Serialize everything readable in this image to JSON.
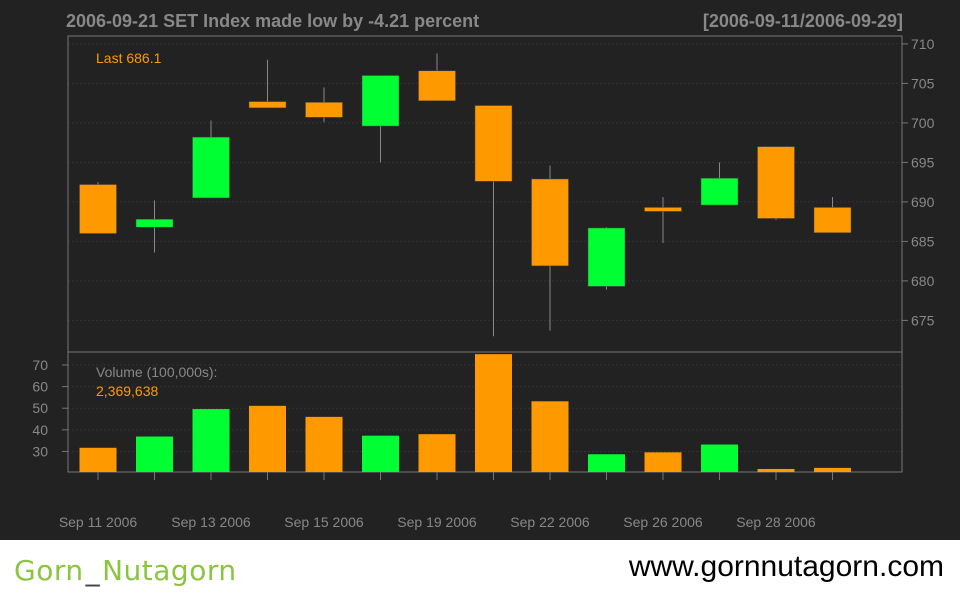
{
  "header": {
    "title": "2006-09-21 SET Index made low by -4.21 percent",
    "range": "[2006-09-11/2006-09-29]"
  },
  "annotations": {
    "last_label": "Last 686.1",
    "volume_label": "Volume (100,000s):",
    "volume_value": "2,369,638"
  },
  "footer": {
    "brand_part1": "Gorn",
    "brand_sep": "_",
    "brand_part2": "Nutagorn",
    "website": "www.gornnutagorn.com"
  },
  "colors": {
    "background": "#222222",
    "up": "#00ff33",
    "down": "#ff9900",
    "text": "#888888",
    "annotation": "#ff9900",
    "brand": "#8bc53f"
  },
  "chart_data": {
    "type": "candlestick",
    "x_tick_labels": [
      "Sep 11 2006",
      "Sep 13 2006",
      "Sep 15 2006",
      "Sep 19 2006",
      "Sep 22 2006",
      "Sep 26 2006",
      "Sep 28 2006"
    ],
    "price_yticks": [
      675,
      680,
      685,
      690,
      695,
      700,
      705,
      710
    ],
    "price_ylim": [
      671,
      711
    ],
    "volume_yticks": [
      30,
      40,
      50,
      60,
      70
    ],
    "volume_ylim": [
      20.5,
      76
    ],
    "candles": [
      {
        "date": "2006-09-11",
        "open": 692.2,
        "high": 692.5,
        "low": 686.0,
        "close": 686.0,
        "volume": 31.7
      },
      {
        "date": "2006-09-12",
        "open": 686.8,
        "high": 690.2,
        "low": 683.6,
        "close": 687.8,
        "volume": 36.9
      },
      {
        "date": "2006-09-13",
        "open": 690.5,
        "high": 700.3,
        "low": 690.5,
        "close": 698.2,
        "volume": 49.6
      },
      {
        "date": "2006-09-14",
        "open": 702.7,
        "high": 708.0,
        "low": 701.9,
        "close": 701.9,
        "volume": 51.1
      },
      {
        "date": "2006-09-15",
        "open": 702.6,
        "high": 704.5,
        "low": 700.1,
        "close": 700.7,
        "volume": 46.0
      },
      {
        "date": "2006-09-18",
        "open": 699.6,
        "high": 706.0,
        "low": 695.0,
        "close": 706.0,
        "volume": 37.3
      },
      {
        "date": "2006-09-19",
        "open": 706.6,
        "high": 708.8,
        "low": 702.8,
        "close": 702.8,
        "volume": 38.0
      },
      {
        "date": "2006-09-20",
        "open": 702.2,
        "high": 702.2,
        "low": 673.0,
        "close": 692.6,
        "volume": 75.0
      },
      {
        "date": "2006-09-21",
        "open": 692.9,
        "high": 694.6,
        "low": 673.7,
        "close": 681.9,
        "volume": 53.2
      },
      {
        "date": "2006-09-22",
        "open": 679.3,
        "high": 686.8,
        "low": 678.9,
        "close": 686.7,
        "volume": 28.7
      },
      {
        "date": "2006-09-25",
        "open": 689.3,
        "high": 690.6,
        "low": 684.8,
        "close": 688.8,
        "volume": 29.6
      },
      {
        "date": "2006-09-26",
        "open": 689.6,
        "high": 695.0,
        "low": 689.6,
        "close": 693.0,
        "volume": 33.2
      },
      {
        "date": "2006-09-27",
        "open": 697.0,
        "high": 697.0,
        "low": 687.7,
        "close": 687.9,
        "volume": 21.9
      },
      {
        "date": "2006-09-28",
        "open": 689.3,
        "high": 690.6,
        "low": 686.1,
        "close": 686.1,
        "volume": 22.4
      }
    ]
  }
}
